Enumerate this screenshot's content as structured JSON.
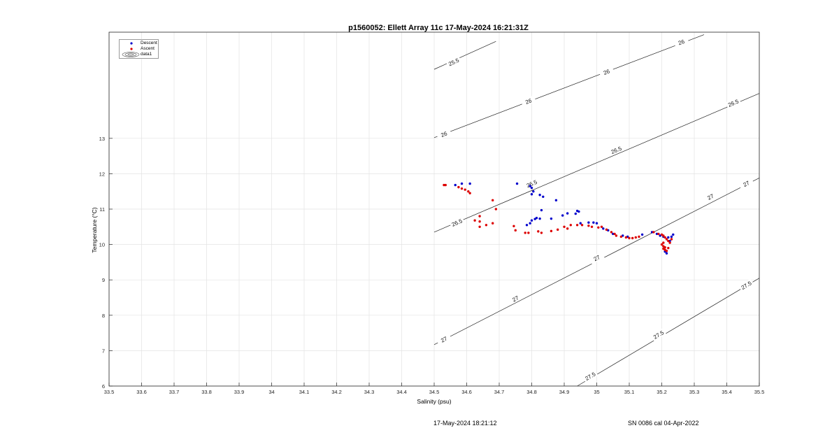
{
  "title": "p1560052: Ellett Array 11c 17-May-2024 16:21:31Z",
  "footer": {
    "left": "17-May-2024 18:21:12",
    "right": "SN 0086 cal 04-Apr-2022"
  },
  "legend": [
    {
      "label": "Descent",
      "color": "#0000cc",
      "symbol": "dot"
    },
    {
      "label": "Ascent",
      "color": "#dd0000",
      "symbol": "dot"
    },
    {
      "label": "data1",
      "color": "#333333",
      "symbol": "contour"
    }
  ],
  "chart_data": {
    "type": "scatter",
    "title": "p1560052: Ellett Array 11c 17-May-2024 16:21:31Z",
    "xlabel": "Salinity (psu)",
    "ylabel": "Temperature (°C)",
    "xlim": [
      33.5,
      35.5
    ],
    "ylim": [
      6,
      16
    ],
    "xticks": [
      "33.5",
      "33.6",
      "33.7",
      "33.8",
      "33.9",
      "34",
      "34.1",
      "34.2",
      "34.3",
      "34.4",
      "34.5",
      "34.6",
      "34.7",
      "34.8",
      "34.9",
      "35",
      "35.1",
      "35.2",
      "35.3",
      "35.4",
      "35.5"
    ],
    "yticks": [
      "6",
      "7",
      "8",
      "9",
      "10",
      "11",
      "12",
      "13"
    ],
    "grid": true,
    "legend_position": "top-left",
    "series": [
      {
        "name": "Descent",
        "color": "#0000cc",
        "points": [
          [
            34.565,
            11.68
          ],
          [
            34.585,
            11.72
          ],
          [
            34.61,
            11.72
          ],
          [
            34.755,
            11.72
          ],
          [
            34.795,
            11.65
          ],
          [
            34.8,
            11.6
          ],
          [
            34.8,
            11.42
          ],
          [
            34.805,
            11.5
          ],
          [
            34.825,
            11.4
          ],
          [
            34.835,
            11.35
          ],
          [
            34.875,
            11.25
          ],
          [
            34.83,
            10.97
          ],
          [
            34.8,
            10.68
          ],
          [
            34.81,
            10.72
          ],
          [
            34.815,
            10.75
          ],
          [
            34.825,
            10.73
          ],
          [
            34.795,
            10.6
          ],
          [
            34.785,
            10.55
          ],
          [
            34.86,
            10.73
          ],
          [
            34.895,
            10.82
          ],
          [
            34.91,
            10.88
          ],
          [
            34.935,
            10.87
          ],
          [
            34.94,
            10.95
          ],
          [
            34.945,
            10.93
          ],
          [
            34.95,
            10.6
          ],
          [
            34.975,
            10.62
          ],
          [
            34.99,
            10.62
          ],
          [
            35.0,
            10.6
          ],
          [
            35.02,
            10.45
          ],
          [
            35.035,
            10.4
          ],
          [
            35.05,
            10.3
          ],
          [
            35.08,
            10.25
          ],
          [
            35.095,
            10.22
          ],
          [
            35.14,
            10.28
          ],
          [
            35.17,
            10.35
          ],
          [
            35.185,
            10.3
          ],
          [
            35.195,
            10.25
          ],
          [
            35.205,
            10.22
          ],
          [
            35.22,
            10.2
          ],
          [
            35.23,
            10.22
          ],
          [
            35.235,
            10.28
          ],
          [
            35.225,
            10.1
          ],
          [
            35.21,
            9.8
          ],
          [
            35.215,
            9.75
          ]
        ]
      },
      {
        "name": "Ascent",
        "color": "#dd0000",
        "points": [
          [
            34.53,
            11.68
          ],
          [
            34.535,
            11.68
          ],
          [
            34.575,
            11.62
          ],
          [
            34.585,
            11.58
          ],
          [
            34.595,
            11.55
          ],
          [
            34.605,
            11.5
          ],
          [
            34.61,
            11.45
          ],
          [
            34.68,
            11.25
          ],
          [
            34.69,
            11.0
          ],
          [
            34.64,
            10.8
          ],
          [
            34.625,
            10.68
          ],
          [
            34.64,
            10.65
          ],
          [
            34.66,
            10.55
          ],
          [
            34.68,
            10.6
          ],
          [
            34.64,
            10.5
          ],
          [
            34.745,
            10.52
          ],
          [
            34.75,
            10.4
          ],
          [
            34.78,
            10.33
          ],
          [
            34.79,
            10.33
          ],
          [
            34.82,
            10.37
          ],
          [
            34.83,
            10.33
          ],
          [
            34.86,
            10.38
          ],
          [
            34.88,
            10.42
          ],
          [
            34.9,
            10.5
          ],
          [
            34.91,
            10.45
          ],
          [
            34.92,
            10.55
          ],
          [
            34.94,
            10.55
          ],
          [
            34.955,
            10.55
          ],
          [
            34.975,
            10.53
          ],
          [
            34.985,
            10.5
          ],
          [
            35.005,
            10.48
          ],
          [
            35.015,
            10.5
          ],
          [
            35.03,
            10.42
          ],
          [
            35.045,
            10.35
          ],
          [
            35.055,
            10.3
          ],
          [
            35.06,
            10.25
          ],
          [
            35.075,
            10.22
          ],
          [
            35.09,
            10.2
          ],
          [
            35.1,
            10.18
          ],
          [
            35.11,
            10.18
          ],
          [
            35.12,
            10.2
          ],
          [
            35.13,
            10.22
          ],
          [
            35.175,
            10.35
          ],
          [
            35.19,
            10.3
          ],
          [
            35.2,
            10.28
          ],
          [
            35.205,
            10.25
          ],
          [
            35.21,
            10.2
          ],
          [
            35.215,
            10.15
          ],
          [
            35.22,
            10.1
          ],
          [
            35.205,
            10.05
          ],
          [
            35.2,
            10.0
          ],
          [
            35.205,
            9.95
          ],
          [
            35.21,
            9.92
          ],
          [
            35.205,
            9.88
          ],
          [
            35.21,
            9.85
          ],
          [
            35.215,
            9.82
          ],
          [
            35.22,
            9.9
          ],
          [
            35.225,
            10.05
          ],
          [
            35.23,
            10.15
          ]
        ]
      }
    ],
    "contours": [
      {
        "label": "25.5",
        "line": [
          [
            34.5,
            14.95
          ],
          [
            34.69,
            15.74
          ]
        ],
        "labels_at": [
          [
            34.56,
            15.16
          ]
        ]
      },
      {
        "label": "26",
        "line": [
          [
            34.5,
            13.02
          ],
          [
            35.33,
            15.93
          ]
        ],
        "labels_at": [
          [
            34.53,
            13.12
          ],
          [
            34.79,
            14.05
          ],
          [
            35.03,
            14.88
          ],
          [
            35.26,
            15.72
          ]
        ]
      },
      {
        "label": "26.5",
        "line": [
          [
            34.5,
            10.35
          ],
          [
            35.5,
            14.27
          ]
        ],
        "labels_at": [
          [
            34.57,
            10.62
          ],
          [
            34.8,
            11.72
          ],
          [
            35.06,
            12.67
          ],
          [
            35.42,
            14.0
          ]
        ]
      },
      {
        "label": "27",
        "line": [
          [
            34.5,
            7.17
          ],
          [
            35.5,
            11.88
          ]
        ],
        "labels_at": [
          [
            34.53,
            7.32
          ],
          [
            34.75,
            8.47
          ],
          [
            35.0,
            9.62
          ],
          [
            35.35,
            11.35
          ],
          [
            35.46,
            11.72
          ]
        ]
      },
      {
        "label": "27.5",
        "line": [
          [
            34.94,
            6.0
          ],
          [
            35.5,
            9.05
          ]
        ],
        "labels_at": [
          [
            34.98,
            6.28
          ],
          [
            35.19,
            7.45
          ],
          [
            35.46,
            8.85
          ]
        ]
      }
    ]
  }
}
